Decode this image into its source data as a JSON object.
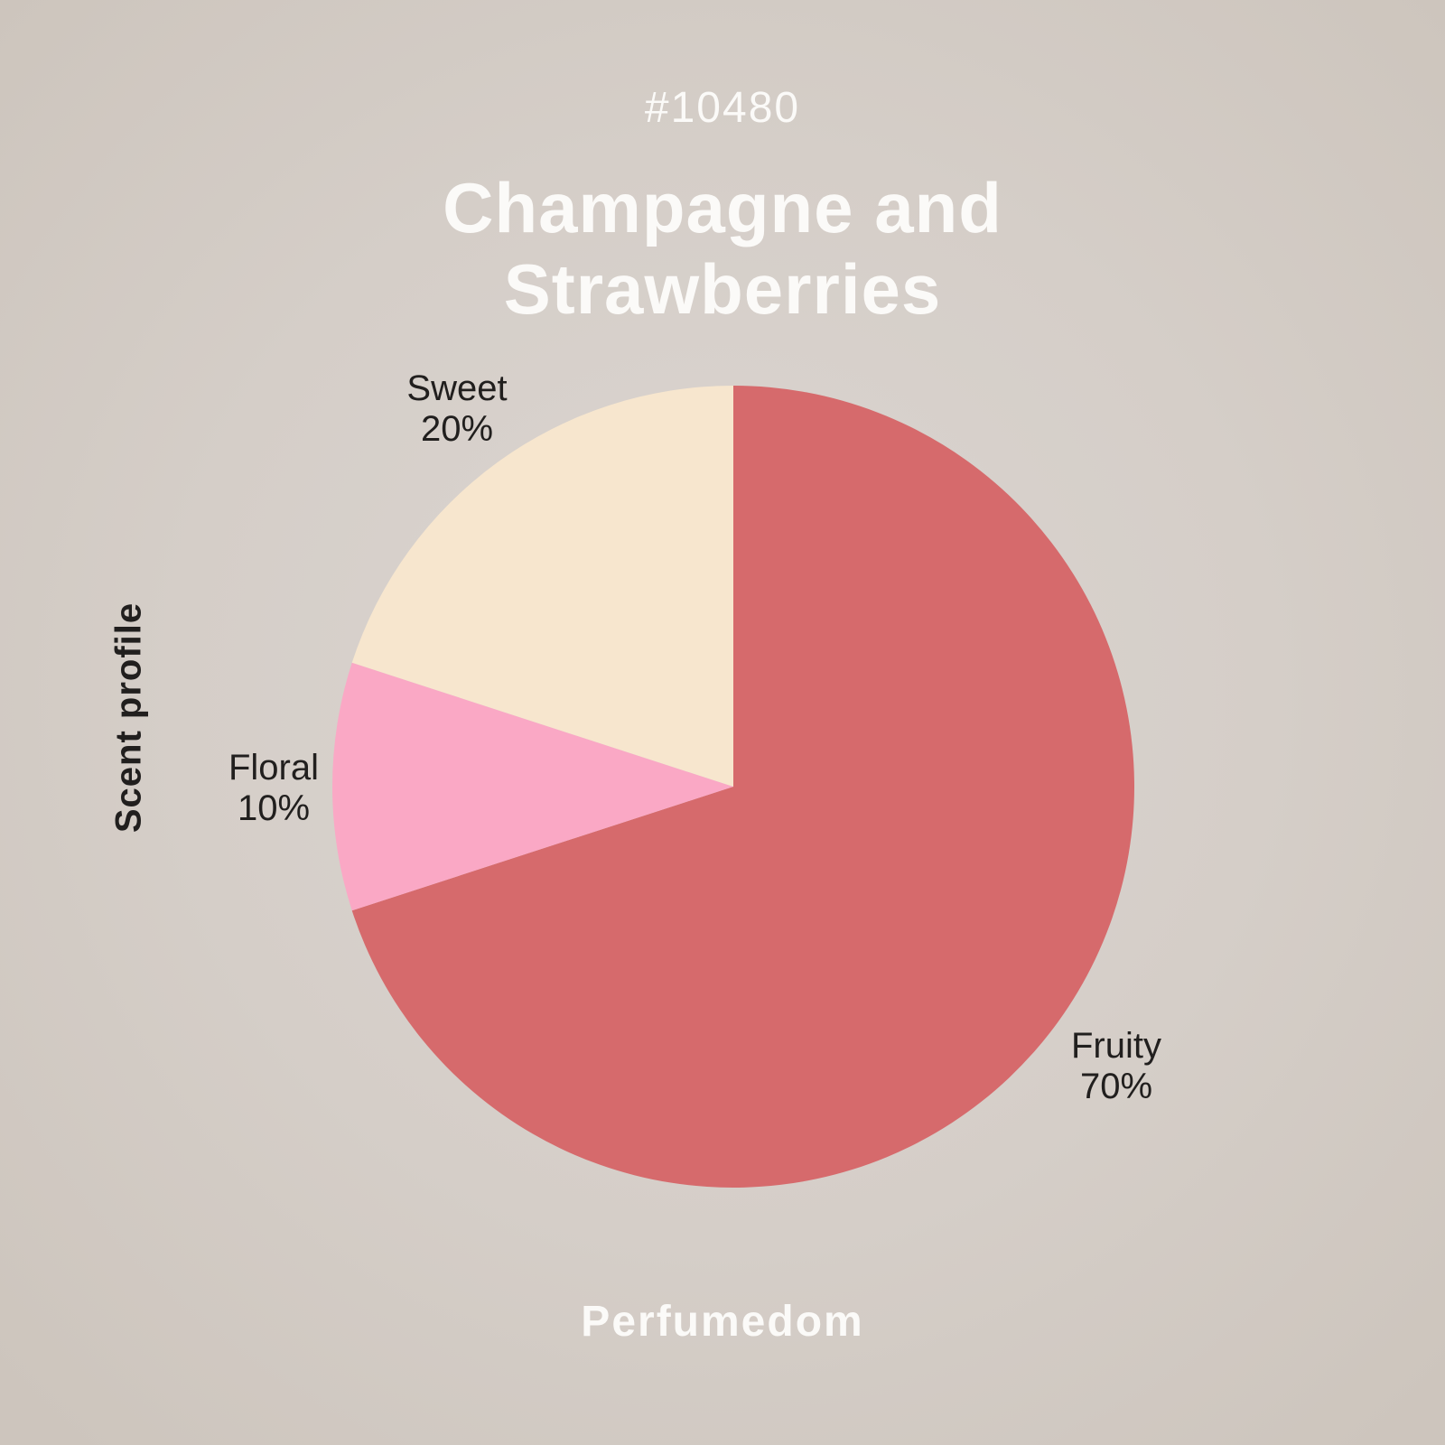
{
  "colors": {
    "background_center": "#dbd5d1",
    "background_mid": "#d5cec8",
    "background_edge": "#cdc5bd",
    "title_text": "#fbfaf8",
    "label_text": "#211f1e"
  },
  "header": {
    "id_tag": "#10480",
    "title": "Champagne and Strawberries"
  },
  "footer": {
    "brand": "Perfumedom"
  },
  "chart_data": {
    "type": "pie",
    "title": "Champagne and Strawberries",
    "ylabel": "Scent profile",
    "categories": [
      "Fruity",
      "Floral",
      "Sweet"
    ],
    "values": [
      70,
      10,
      20
    ],
    "unit": "%",
    "direction": "clockwise",
    "start_angle_deg": 0,
    "legend_position": "none",
    "slices": [
      {
        "name": "Fruity",
        "pct": 70,
        "label": "70%",
        "color": "#d66a6c"
      },
      {
        "name": "Floral",
        "pct": 10,
        "label": "10%",
        "color": "#faa8c5"
      },
      {
        "name": "Sweet",
        "pct": 20,
        "label": "20%",
        "color": "#f7e6ce"
      }
    ]
  }
}
